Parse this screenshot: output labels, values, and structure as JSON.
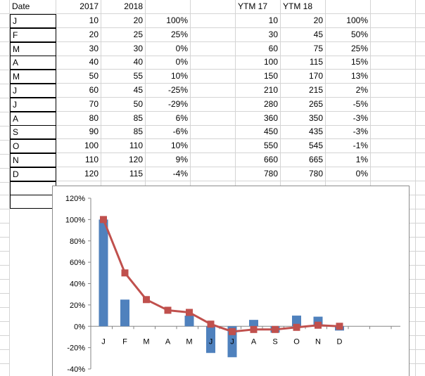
{
  "sheet": {
    "header": {
      "date": "Date",
      "y2017": "2017",
      "y2018": "2018",
      "ytm17": "YTM 17",
      "ytm18": "YTM 18"
    },
    "rows": [
      {
        "month": "J",
        "v2017": "10",
        "v2018": "20",
        "pct": "100%",
        "ytm17": "10",
        "ytm18": "20",
        "ytm_pct": "100%"
      },
      {
        "month": "F",
        "v2017": "20",
        "v2018": "25",
        "pct": "25%",
        "ytm17": "30",
        "ytm18": "45",
        "ytm_pct": "50%"
      },
      {
        "month": "M",
        "v2017": "30",
        "v2018": "30",
        "pct": "0%",
        "ytm17": "60",
        "ytm18": "75",
        "ytm_pct": "25%"
      },
      {
        "month": "A",
        "v2017": "40",
        "v2018": "40",
        "pct": "0%",
        "ytm17": "100",
        "ytm18": "115",
        "ytm_pct": "15%"
      },
      {
        "month": "M",
        "v2017": "50",
        "v2018": "55",
        "pct": "10%",
        "ytm17": "150",
        "ytm18": "170",
        "ytm_pct": "13%"
      },
      {
        "month": "J",
        "v2017": "60",
        "v2018": "45",
        "pct": "-25%",
        "ytm17": "210",
        "ytm18": "215",
        "ytm_pct": "2%"
      },
      {
        "month": "J",
        "v2017": "70",
        "v2018": "50",
        "pct": "-29%",
        "ytm17": "280",
        "ytm18": "265",
        "ytm_pct": "-5%"
      },
      {
        "month": "A",
        "v2017": "80",
        "v2018": "85",
        "pct": "6%",
        "ytm17": "360",
        "ytm18": "350",
        "ytm_pct": "-3%"
      },
      {
        "month": "S",
        "v2017": "90",
        "v2018": "85",
        "pct": "-6%",
        "ytm17": "450",
        "ytm18": "435",
        "ytm_pct": "-3%"
      },
      {
        "month": "O",
        "v2017": "100",
        "v2018": "110",
        "pct": "10%",
        "ytm17": "550",
        "ytm18": "545",
        "ytm_pct": "-1%"
      },
      {
        "month": "N",
        "v2017": "110",
        "v2018": "120",
        "pct": "9%",
        "ytm17": "660",
        "ytm18": "665",
        "ytm_pct": "1%"
      },
      {
        "month": "D",
        "v2017": "120",
        "v2018": "115",
        "pct": "-4%",
        "ytm17": "780",
        "ytm18": "780",
        "ytm_pct": "0%"
      }
    ]
  },
  "chart_data": {
    "type": "bar",
    "categories": [
      "J",
      "F",
      "M",
      "A",
      "M",
      "J",
      "J",
      "A",
      "S",
      "O",
      "N",
      "D"
    ],
    "series": [
      {
        "kind": "bar",
        "color": "#4f81bd",
        "values": [
          100,
          25,
          0,
          0,
          10,
          -25,
          -29,
          6,
          -6,
          10,
          9,
          -4
        ]
      },
      {
        "kind": "line",
        "color": "#c0504d",
        "values": [
          100,
          50,
          25,
          15,
          13,
          2,
          -5,
          -3,
          -3,
          -1,
          1,
          0
        ]
      }
    ],
    "ylim": [
      -40,
      120
    ],
    "yticks": [
      "-40%",
      "-20%",
      "0%",
      "20%",
      "40%",
      "60%",
      "80%",
      "100%",
      "120%"
    ],
    "ytick_values": [
      -40,
      -20,
      0,
      20,
      40,
      60,
      80,
      100,
      120
    ],
    "grid": false,
    "legend": "none"
  }
}
